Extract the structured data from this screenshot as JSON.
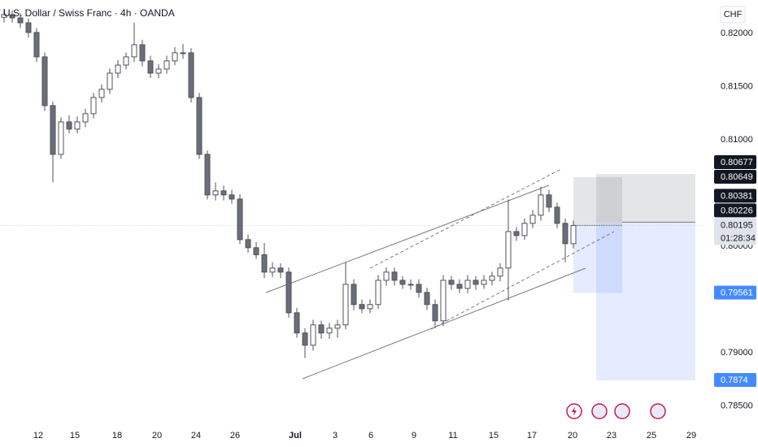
{
  "chart_data": {
    "type": "candlestick",
    "title": "U.S. Dollar / Swiss Franc · 4h · OANDA",
    "currency": "CHF",
    "countdown": "01:28:34",
    "up_color": "#ffffff",
    "down_color": "#6b6e78",
    "wick_color": "#50535e",
    "x": [
      0.5,
      1.5,
      2.5,
      3.5,
      4.5,
      5.5,
      6.5,
      7.5,
      8.5,
      9.5,
      10.5,
      11.5,
      12.5,
      13.5,
      14.5,
      15.5,
      16.5,
      17.5,
      18.5,
      19.5,
      20.5,
      21.5,
      22.5,
      23.5,
      24.5,
      25.5,
      26.5,
      27.5,
      28.5,
      29.5,
      30.5,
      31.5,
      32.5,
      33.5,
      34.5,
      35.5,
      36.5,
      37.5,
      38.5,
      39.5,
      40.5,
      41.5,
      42.5,
      43.5,
      44.5,
      45.5,
      46.5,
      47.5,
      48.5,
      49.5,
      50.5,
      51.5,
      52.5,
      53.5,
      54.5,
      55.5,
      56.5,
      57.5,
      58.5,
      59.5,
      60.5,
      61.5,
      62.5,
      63.5,
      64.5,
      65.5,
      66.5,
      67.5,
      68.5,
      69.5,
      70.5
    ],
    "open": [
      0.8215,
      0.82176,
      0.82145,
      0.82099,
      0.82008,
      0.81779,
      0.81321,
      0.80863,
      0.81168,
      0.811,
      0.81168,
      0.81245,
      0.81397,
      0.81474,
      0.81626,
      0.81702,
      0.81779,
      0.81893,
      0.81741,
      0.81626,
      0.81664,
      0.81741,
      0.81817,
      0.81817,
      0.81397,
      0.80863,
      0.80482,
      0.8052,
      0.80482,
      0.80443,
      0.80062,
      0.79986,
      0.7992,
      0.79757,
      0.79795,
      0.79757,
      0.79375,
      0.79185,
      0.7907,
      0.79261,
      0.79185,
      0.7923,
      0.79261,
      0.79642,
      0.79452,
      0.79413,
      0.79452,
      0.7968,
      0.79757,
      0.7968,
      0.79642,
      0.79642,
      0.79566,
      0.79452,
      0.79299,
      0.7968,
      0.79642,
      0.79604,
      0.7968,
      0.79642,
      0.7968,
      0.79719,
      0.79795,
      0.80138,
      0.801,
      0.80215,
      0.80291,
      0.80482,
      0.80367,
      0.80215,
      0.80024
    ],
    "high": [
      0.8223,
      0.82215,
      0.8219,
      0.8214,
      0.8205,
      0.8182,
      0.8136,
      0.8121,
      0.8123,
      0.8122,
      0.8129,
      0.8144,
      0.8152,
      0.8167,
      0.8175,
      0.8182,
      0.821,
      0.8194,
      0.8179,
      0.8171,
      0.8179,
      0.8187,
      0.819,
      0.8186,
      0.8144,
      0.809,
      0.806,
      0.8057,
      0.8053,
      0.8049,
      0.8011,
      0.8004,
      0.8003,
      0.7985,
      0.7984,
      0.798,
      0.7942,
      0.7923,
      0.7931,
      0.793,
      0.7928,
      0.7931,
      0.7985,
      0.7969,
      0.795,
      0.795,
      0.7973,
      0.798,
      0.798,
      0.7972,
      0.7969,
      0.7969,
      0.7961,
      0.795,
      0.7973,
      0.7972,
      0.7969,
      0.7973,
      0.7972,
      0.7973,
      0.7976,
      0.7984,
      0.8044,
      0.8018,
      0.8026,
      0.8034,
      0.8056,
      0.8053,
      0.8041,
      0.8026,
      0.8024
    ],
    "low": [
      0.821,
      0.821,
      0.8205,
      0.8196,
      0.8173,
      0.8127,
      0.806,
      0.8082,
      0.8106,
      0.8106,
      0.8112,
      0.812,
      0.8135,
      0.8143,
      0.8158,
      0.8166,
      0.8173,
      0.8169,
      0.8158,
      0.8158,
      0.8162,
      0.817,
      0.8176,
      0.8135,
      0.8082,
      0.8044,
      0.8043,
      0.8043,
      0.804,
      0.8002,
      0.7994,
      0.7988,
      0.797,
      0.7971,
      0.797,
      0.7933,
      0.7914,
      0.7895,
      0.7902,
      0.7913,
      0.7913,
      0.7914,
      0.7922,
      0.794,
      0.7937,
      0.7937,
      0.7941,
      0.7963,
      0.7963,
      0.796,
      0.7959,
      0.7952,
      0.794,
      0.7923,
      0.7925,
      0.7959,
      0.7956,
      0.7956,
      0.7959,
      0.796,
      0.7963,
      0.7967,
      0.7949,
      0.8005,
      0.8006,
      0.8017,
      0.8024,
      0.8032,
      0.8017,
      0.7985,
      0.7998
    ],
    "close": [
      0.82176,
      0.82145,
      0.82099,
      0.82008,
      0.81779,
      0.81321,
      0.80863,
      0.81168,
      0.811,
      0.81168,
      0.81245,
      0.81397,
      0.81474,
      0.81626,
      0.81702,
      0.81779,
      0.81893,
      0.81741,
      0.81626,
      0.81664,
      0.81741,
      0.81817,
      0.81817,
      0.81397,
      0.80863,
      0.80482,
      0.8052,
      0.80482,
      0.80443,
      0.80062,
      0.79986,
      0.7992,
      0.79757,
      0.79795,
      0.79757,
      0.79375,
      0.79185,
      0.7907,
      0.79261,
      0.79185,
      0.7923,
      0.79261,
      0.79642,
      0.79452,
      0.79413,
      0.79452,
      0.7968,
      0.79757,
      0.7968,
      0.79642,
      0.79642,
      0.79566,
      0.79452,
      0.79299,
      0.7968,
      0.79642,
      0.79604,
      0.7968,
      0.79642,
      0.7968,
      0.79719,
      0.79795,
      0.80138,
      0.801,
      0.80215,
      0.80291,
      0.80482,
      0.80367,
      0.80215,
      0.80024,
      0.80195
    ],
    "xlim": [
      0,
      87
    ],
    "xticks": [
      {
        "value": 4.7,
        "label": "12"
      },
      {
        "value": 9.2,
        "label": "15"
      },
      {
        "value": 14.4,
        "label": "18"
      },
      {
        "value": 19.3,
        "label": "20"
      },
      {
        "value": 24.1,
        "label": "24"
      },
      {
        "value": 28.9,
        "label": "26"
      },
      {
        "value": 36.3,
        "label": "Jul"
      },
      {
        "value": 41.2,
        "label": "3"
      },
      {
        "value": 45.6,
        "label": "6"
      },
      {
        "value": 50.9,
        "label": "9"
      },
      {
        "value": 55.7,
        "label": "11"
      },
      {
        "value": 60.7,
        "label": "15"
      },
      {
        "value": 65.4,
        "label": "17"
      },
      {
        "value": 70.4,
        "label": "20"
      },
      {
        "value": 75.2,
        "label": "23"
      },
      {
        "value": 80.1,
        "label": "25"
      },
      {
        "value": 85.0,
        "label": "29"
      }
    ],
    "ylim": [
      0.78343,
      0.82313
    ],
    "yticks": [
      {
        "value": 0.82,
        "label": "0.82000"
      },
      {
        "value": 0.815,
        "label": "0.81500"
      },
      {
        "value": 0.81,
        "label": "0.81000"
      },
      {
        "value": 0.8,
        "label": "0.80000"
      },
      {
        "value": 0.79,
        "label": "0.79000"
      },
      {
        "value": 0.785,
        "label": "0.78500"
      }
    ],
    "price_labels": [
      {
        "value": 0.80677,
        "color": "#131722"
      },
      {
        "value": 0.80649,
        "color": "#131722"
      },
      {
        "value": 0.80381,
        "color": "#131722"
      },
      {
        "value": 0.80226,
        "color": "#131722"
      },
      {
        "value": 0.80195,
        "color": "#e0e3eb"
      },
      {
        "value": 0.79561,
        "color": "#448aff"
      },
      {
        "value": 0.7874,
        "color": "#448aff"
      }
    ]
  }
}
